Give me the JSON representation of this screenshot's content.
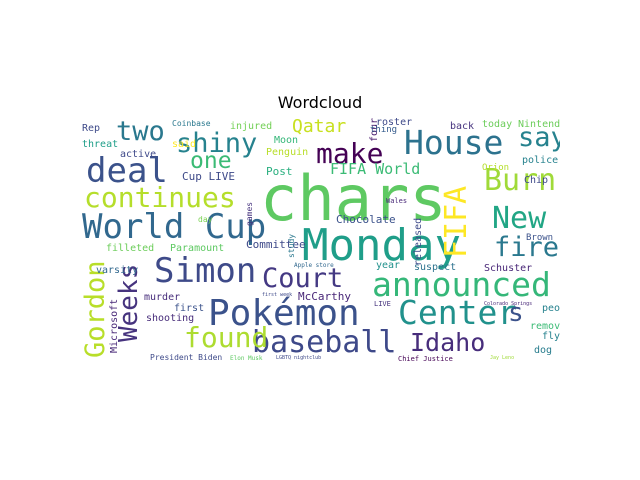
{
  "chart_data": {
    "type": "wordcloud",
    "title": "Wordcloud",
    "colormap": "viridis",
    "background": "#ffffff",
    "words": [
      {
        "text": "chars",
        "color": "#5ec962"
      },
      {
        "text": "Monday",
        "color": "#1f9e89"
      },
      {
        "text": "World Cup",
        "color": "#31688e"
      },
      {
        "text": "Pokémon",
        "color": "#3b528b"
      },
      {
        "text": "baseball",
        "color": "#3e4989"
      },
      {
        "text": "announced",
        "color": "#35b779"
      },
      {
        "text": "Simon",
        "color": "#3e4a89"
      },
      {
        "text": "Court",
        "color": "#443983"
      },
      {
        "text": "House",
        "color": "#2c728e"
      },
      {
        "text": "deal",
        "color": "#3b528b"
      },
      {
        "text": "Center",
        "color": "#21918c"
      },
      {
        "text": "continues",
        "color": "#b5de2b"
      },
      {
        "text": "make",
        "color": "#440154"
      },
      {
        "text": "Burn",
        "color": "#a0da39"
      },
      {
        "text": "New",
        "color": "#21a685"
      },
      {
        "text": "shiny",
        "color": "#26828e"
      },
      {
        "text": "two",
        "color": "#2a788e"
      },
      {
        "text": "found",
        "color": "#addc30"
      },
      {
        "text": "Weeks",
        "color": "#46337e"
      },
      {
        "text": "Gordon",
        "color": "#b8de29"
      },
      {
        "text": "Idaho",
        "color": "#472d7b"
      },
      {
        "text": "fire",
        "color": "#2a788e"
      },
      {
        "text": "say",
        "color": "#26828e"
      },
      {
        "text": "one",
        "color": "#3bbb75"
      },
      {
        "text": "FIFA",
        "color": "#fde725"
      },
      {
        "text": "s",
        "color": "#3b528b"
      },
      {
        "text": "Qatar",
        "color": "#c8e020"
      },
      {
        "text": "FIFA World",
        "color": "#3bbb75"
      },
      {
        "text": "Cup LIVE",
        "color": "#3e4a89"
      },
      {
        "text": "Post",
        "color": "#29af7f"
      },
      {
        "text": "Chocolate",
        "color": "#3b528b"
      },
      {
        "text": "Committee",
        "color": "#3e4989"
      },
      {
        "text": "McCarthy",
        "color": "#482677"
      },
      {
        "text": "Microsoft",
        "color": "#482878"
      },
      {
        "text": "varsity",
        "color": "#31688e"
      },
      {
        "text": "murder",
        "color": "#472d7b"
      },
      {
        "text": "first",
        "color": "#3b528b"
      },
      {
        "text": "shooting",
        "color": "#472c7a"
      },
      {
        "text": "filleted",
        "color": "#6ccd5a"
      },
      {
        "text": "Paramount",
        "color": "#5ec962"
      },
      {
        "text": "injured",
        "color": "#73d056"
      },
      {
        "text": "Penguin",
        "color": "#b8de29"
      },
      {
        "text": "Moon",
        "color": "#35b779"
      },
      {
        "text": "said",
        "color": "#fde725"
      },
      {
        "text": "threat",
        "color": "#1f9e89"
      },
      {
        "text": "active",
        "color": "#3e4989"
      },
      {
        "text": "Rep",
        "color": "#3e4a89"
      },
      {
        "text": "Coinbase",
        "color": "#2a788e"
      },
      {
        "text": "roster",
        "color": "#3e4989"
      },
      {
        "text": "four",
        "color": "#481a6c"
      },
      {
        "text": "back",
        "color": "#46337e"
      },
      {
        "text": "thing",
        "color": "#365c8d"
      },
      {
        "text": "today",
        "color": "#6ccd5a"
      },
      {
        "text": "Nintendo",
        "color": "#6ccd5a"
      },
      {
        "text": "released",
        "color": "#3e4a89"
      },
      {
        "text": "Orion",
        "color": "#b5de2b"
      },
      {
        "text": "police",
        "color": "#26828e"
      },
      {
        "text": "Chip",
        "color": "#3e4989"
      },
      {
        "text": "Brown",
        "color": "#3b528b"
      },
      {
        "text": "Schuster",
        "color": "#482677"
      },
      {
        "text": "suspect",
        "color": "#2c728e"
      },
      {
        "text": "year",
        "color": "#21918c"
      },
      {
        "text": "people",
        "color": "#26828e"
      },
      {
        "text": "remove",
        "color": "#3bbb75"
      },
      {
        "text": "flyby",
        "color": "#26828e"
      },
      {
        "text": "dog",
        "color": "#287d8e"
      },
      {
        "text": "games",
        "color": "#46337e"
      },
      {
        "text": "study",
        "color": "#2a788e"
      },
      {
        "text": "day",
        "color": "#7ad151"
      },
      {
        "text": "Wales",
        "color": "#482878"
      },
      {
        "text": "Apple store",
        "color": "#31688e"
      },
      {
        "text": "LIVE",
        "color": "#46337e"
      },
      {
        "text": "President Biden",
        "color": "#3e4a89"
      },
      {
        "text": "Elon Musk",
        "color": "#5ec962"
      },
      {
        "text": "LGBTQ nightclub",
        "color": "#3e4989"
      },
      {
        "text": "Chief Justice",
        "color": "#440154"
      },
      {
        "text": "Colorado Springs",
        "color": "#482878"
      },
      {
        "text": "Jay Leno",
        "color": "#a0da39"
      },
      {
        "text": "first week",
        "color": "#3e4989"
      }
    ]
  }
}
